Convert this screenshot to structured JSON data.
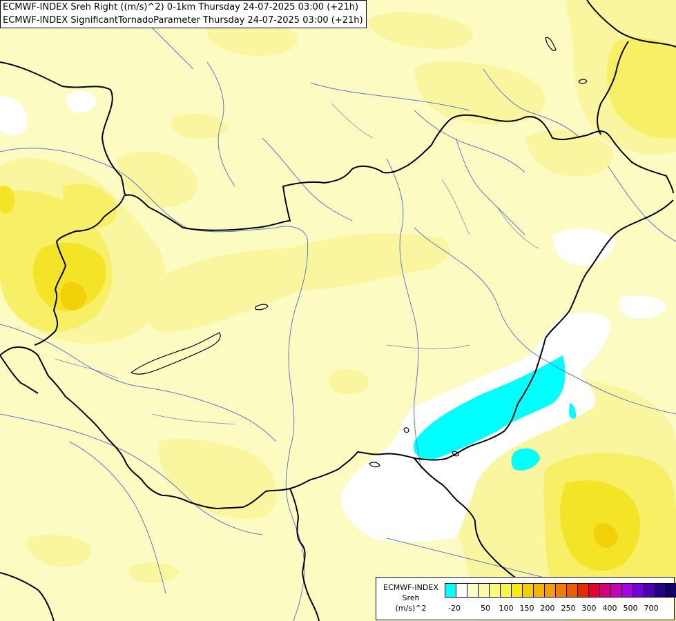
{
  "header": {
    "line1": "ECMWF-INDEX Sreh Right ((m/s)^2) 0-1km Thursday 24-07-2025 03:00 (+21h)",
    "line2": "ECMWF-INDEX SignificantTornadoParameter Thursday 24-07-2025 03:00 (+21h)"
  },
  "legend": {
    "title_line1": "ECMWF-INDEX",
    "title_line2": "Sreh",
    "title_line3": "(m/s)^2",
    "colors": [
      "#00ffff",
      "#ffffff",
      "#fdfcc4",
      "#fdfaa6",
      "#fcf87e",
      "#fbf44f",
      "#f8ec0a",
      "#f5ce00",
      "#f4b400",
      "#f39d00",
      "#f07e00",
      "#ec5c00",
      "#e52b00",
      "#e40035",
      "#d4007e",
      "#c400b8",
      "#a400e2",
      "#7400de",
      "#4a00b4",
      "#270087",
      "#100066"
    ],
    "ticks": [
      "-20",
      "50",
      "100",
      "150",
      "200",
      "250",
      "300",
      "400",
      "500",
      "700"
    ]
  },
  "map": {
    "colors": {
      "base": "#fcfbc2",
      "level1": "#faf6a0",
      "level2": "#f7ef66",
      "level3": "#f4e428",
      "level4": "#f1d10a",
      "white": "#ffffff",
      "cyan": "#00ffff",
      "border": "#000000",
      "river": "#5a7bc4"
    }
  }
}
